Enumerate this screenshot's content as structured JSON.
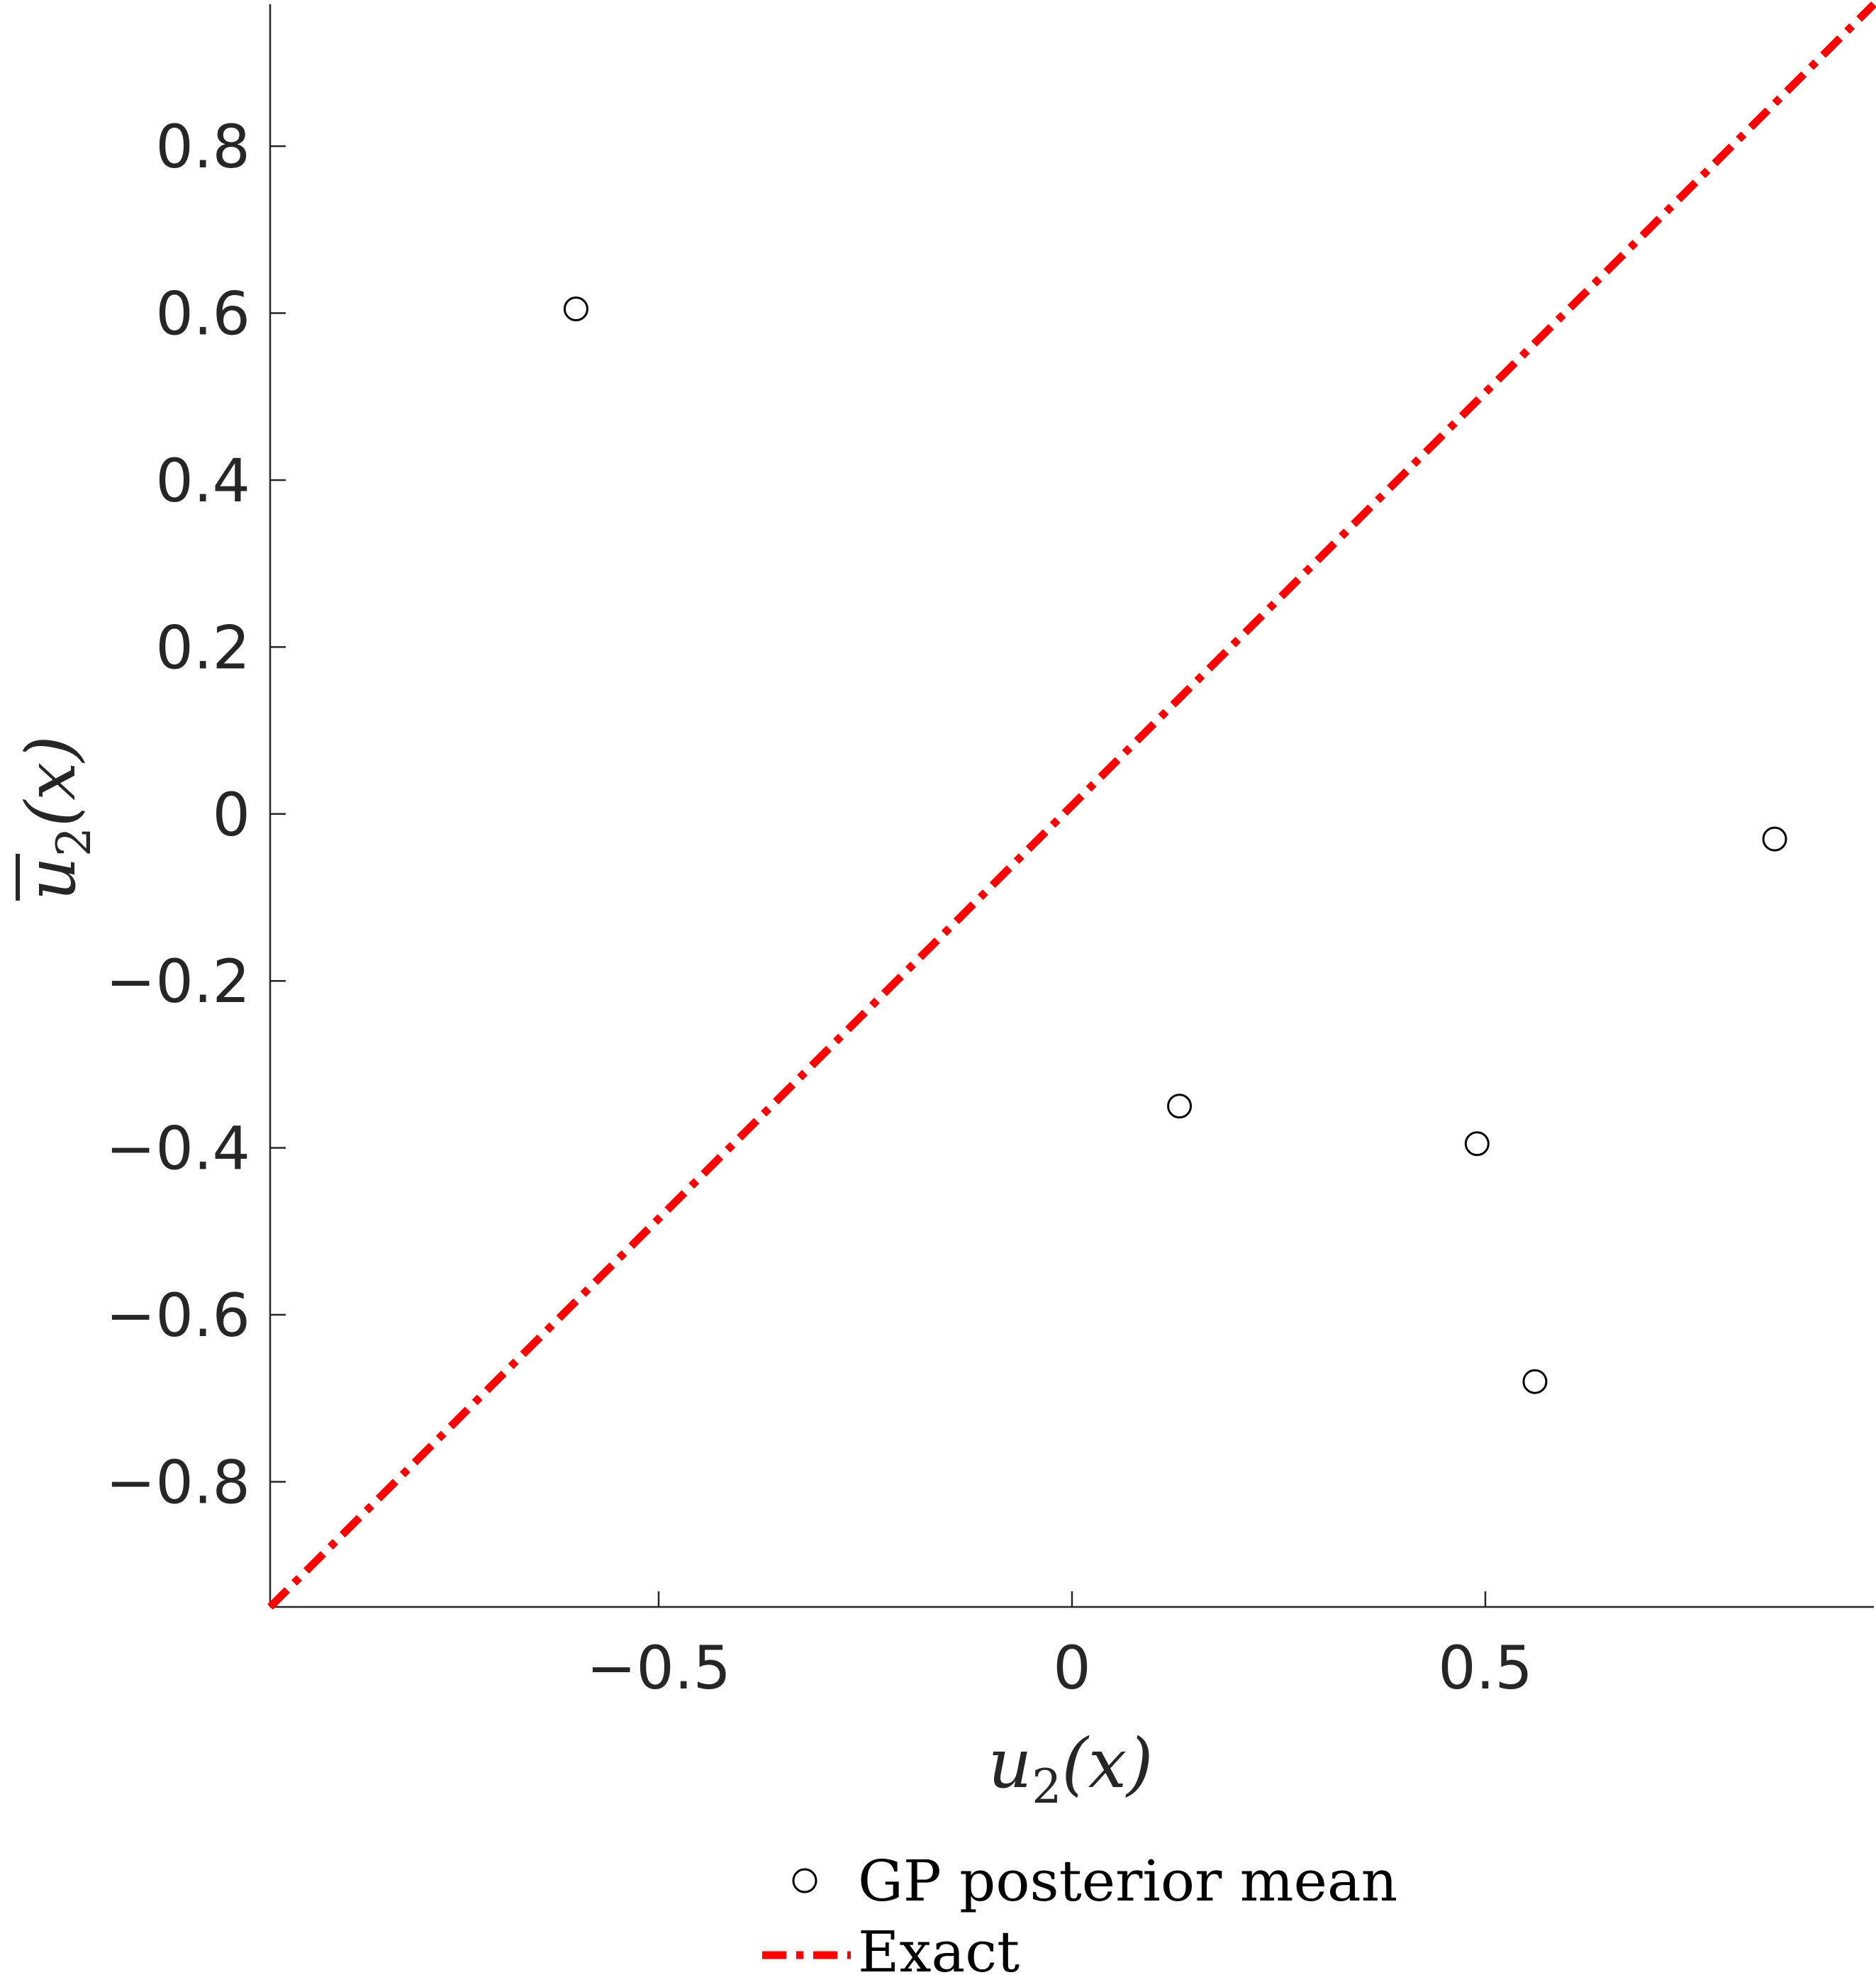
{
  "chart_data": {
    "type": "scatter",
    "xlabel_main": "u",
    "xlabel_sub": "2",
    "xlabel_arg": "(x)",
    "ylabel_main": "u",
    "ylabel_sub": "2",
    "ylabel_arg": "(x)",
    "xlim": [
      -0.97,
      0.97
    ],
    "ylim": [
      -0.95,
      0.97
    ],
    "xticks": [
      -0.5,
      0,
      0.5
    ],
    "xtick_labels": [
      "−0.5",
      "0",
      "0.5"
    ],
    "yticks": [
      -0.8,
      -0.6,
      -0.4,
      -0.2,
      0,
      0.2,
      0.4,
      0.6,
      0.8
    ],
    "ytick_labels": [
      "−0.8",
      "−0.6",
      "−0.4",
      "−0.2",
      "0",
      "0.2",
      "0.4",
      "0.6",
      "0.8"
    ],
    "grid": false,
    "legend_position": "bottom",
    "series": [
      {
        "name": "GP posterior mean",
        "kind": "scatter",
        "marker": "open-circle",
        "color": "#000000",
        "x": [
          -0.6,
          0.13,
          0.49,
          0.56,
          0.85
        ],
        "y": [
          0.605,
          -0.35,
          -0.395,
          -0.68,
          -0.03
        ]
      },
      {
        "name": "Exact",
        "kind": "line",
        "style": "dash-dot",
        "color": "#ff0000",
        "x": [
          -0.97,
          0.97
        ],
        "y": [
          -0.95,
          0.97
        ]
      }
    ]
  }
}
